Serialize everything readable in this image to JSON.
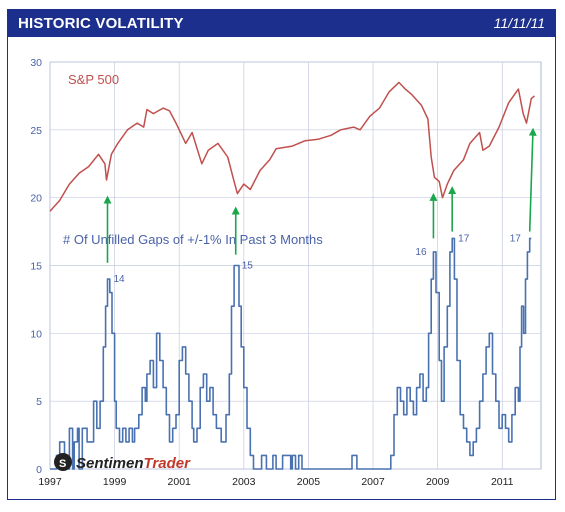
{
  "header": {
    "title": "HISTORIC VOLATILITY",
    "date": "11/11/11"
  },
  "logo": {
    "text_a": "Sentimen",
    "text_b": "Trader"
  },
  "chart_data": {
    "type": "line",
    "xlim": [
      1997,
      2012.2
    ],
    "ylim": [
      0,
      30
    ],
    "yticks": [
      0,
      5,
      10,
      15,
      20,
      25,
      30
    ],
    "xticks": [
      "1997",
      "1999",
      "2001",
      "2003",
      "2005",
      "2007",
      "2009",
      "2011"
    ],
    "xtick_values": [
      1997,
      1999,
      2001,
      2003,
      2005,
      2007,
      2009,
      2011
    ],
    "grid": true,
    "series": [
      {
        "name": "S&P 500",
        "color": "#c0504d",
        "points": [
          [
            1997.0,
            19.0
          ],
          [
            1997.3,
            19.8
          ],
          [
            1997.6,
            21.0
          ],
          [
            1997.9,
            21.8
          ],
          [
            1998.2,
            22.3
          ],
          [
            1998.5,
            23.2
          ],
          [
            1998.7,
            22.5
          ],
          [
            1998.75,
            21.3
          ],
          [
            1998.9,
            23.2
          ],
          [
            1999.1,
            24.0
          ],
          [
            1999.4,
            25.0
          ],
          [
            1999.7,
            25.5
          ],
          [
            1999.9,
            25.2
          ],
          [
            2000.0,
            26.5
          ],
          [
            2000.2,
            26.2
          ],
          [
            2000.5,
            26.6
          ],
          [
            2000.7,
            26.4
          ],
          [
            2000.9,
            25.5
          ],
          [
            2001.2,
            24.0
          ],
          [
            2001.4,
            24.8
          ],
          [
            2001.7,
            22.5
          ],
          [
            2001.9,
            23.5
          ],
          [
            2002.2,
            24.0
          ],
          [
            2002.5,
            23.0
          ],
          [
            2002.7,
            21.2
          ],
          [
            2002.8,
            20.3
          ],
          [
            2003.0,
            21.0
          ],
          [
            2003.2,
            20.6
          ],
          [
            2003.5,
            22.0
          ],
          [
            2003.8,
            22.8
          ],
          [
            2004.0,
            23.6
          ],
          [
            2004.5,
            23.8
          ],
          [
            2004.9,
            24.2
          ],
          [
            2005.3,
            24.3
          ],
          [
            2005.7,
            24.6
          ],
          [
            2006.0,
            25.0
          ],
          [
            2006.4,
            25.2
          ],
          [
            2006.6,
            25.0
          ],
          [
            2006.9,
            26.0
          ],
          [
            2007.2,
            26.6
          ],
          [
            2007.5,
            27.8
          ],
          [
            2007.8,
            28.5
          ],
          [
            2008.0,
            28.0
          ],
          [
            2008.2,
            27.6
          ],
          [
            2008.5,
            26.8
          ],
          [
            2008.7,
            25.8
          ],
          [
            2008.8,
            23.0
          ],
          [
            2008.9,
            21.5
          ],
          [
            2009.05,
            21.2
          ],
          [
            2009.15,
            20.0
          ],
          [
            2009.3,
            21.0
          ],
          [
            2009.5,
            22.0
          ],
          [
            2009.8,
            22.8
          ],
          [
            2010.0,
            24.0
          ],
          [
            2010.3,
            24.8
          ],
          [
            2010.4,
            23.5
          ],
          [
            2010.6,
            23.8
          ],
          [
            2010.9,
            25.2
          ],
          [
            2011.2,
            27.0
          ],
          [
            2011.5,
            28.0
          ],
          [
            2011.65,
            26.2
          ],
          [
            2011.75,
            25.5
          ],
          [
            2011.9,
            27.3
          ],
          [
            2012.0,
            27.5
          ]
        ]
      },
      {
        "name": "# Of Unfilled Gaps of +/-1% In Past 3 Months",
        "color": "#4a72b0",
        "points": [
          [
            1997.0,
            0
          ],
          [
            1997.2,
            1
          ],
          [
            1997.3,
            2
          ],
          [
            1997.45,
            0
          ],
          [
            1997.6,
            3
          ],
          [
            1997.7,
            0
          ],
          [
            1997.75,
            2
          ],
          [
            1997.85,
            3
          ],
          [
            1997.9,
            0
          ],
          [
            1998.0,
            3
          ],
          [
            1998.15,
            2
          ],
          [
            1998.25,
            2
          ],
          [
            1998.35,
            5
          ],
          [
            1998.45,
            3
          ],
          [
            1998.55,
            5
          ],
          [
            1998.65,
            9
          ],
          [
            1998.72,
            12
          ],
          [
            1998.78,
            14
          ],
          [
            1998.85,
            13
          ],
          [
            1998.92,
            10
          ],
          [
            1999.0,
            5
          ],
          [
            1999.05,
            3
          ],
          [
            1999.15,
            2
          ],
          [
            1999.25,
            3
          ],
          [
            1999.35,
            2
          ],
          [
            1999.45,
            3
          ],
          [
            1999.55,
            2
          ],
          [
            1999.62,
            3
          ],
          [
            1999.75,
            4
          ],
          [
            1999.85,
            6
          ],
          [
            1999.95,
            5
          ],
          [
            2000.0,
            7
          ],
          [
            2000.1,
            8
          ],
          [
            2000.2,
            6
          ],
          [
            2000.3,
            10
          ],
          [
            2000.4,
            8
          ],
          [
            2000.5,
            6
          ],
          [
            2000.6,
            4
          ],
          [
            2000.7,
            2
          ],
          [
            2000.8,
            3
          ],
          [
            2000.9,
            4
          ],
          [
            2001.0,
            8
          ],
          [
            2001.1,
            9
          ],
          [
            2001.2,
            7
          ],
          [
            2001.3,
            5
          ],
          [
            2001.4,
            3
          ],
          [
            2001.45,
            2
          ],
          [
            2001.55,
            3
          ],
          [
            2001.65,
            6
          ],
          [
            2001.75,
            7
          ],
          [
            2001.85,
            5
          ],
          [
            2001.95,
            6
          ],
          [
            2002.05,
            4
          ],
          [
            2002.15,
            3
          ],
          [
            2002.3,
            2
          ],
          [
            2002.45,
            4
          ],
          [
            2002.55,
            7
          ],
          [
            2002.62,
            12
          ],
          [
            2002.7,
            15
          ],
          [
            2002.78,
            15
          ],
          [
            2002.85,
            12
          ],
          [
            2002.92,
            9
          ],
          [
            2003.0,
            6
          ],
          [
            2003.1,
            3
          ],
          [
            2003.2,
            1
          ],
          [
            2003.3,
            0
          ],
          [
            2003.5,
            0
          ],
          [
            2003.55,
            1
          ],
          [
            2003.7,
            0
          ],
          [
            2003.9,
            1
          ],
          [
            2004.0,
            0
          ],
          [
            2004.2,
            1
          ],
          [
            2004.45,
            0
          ],
          [
            2004.5,
            1
          ],
          [
            2004.6,
            0
          ],
          [
            2004.7,
            1
          ],
          [
            2004.8,
            0
          ],
          [
            2006.3,
            0
          ],
          [
            2006.35,
            1
          ],
          [
            2006.5,
            0
          ],
          [
            2007.4,
            0
          ],
          [
            2007.55,
            1
          ],
          [
            2007.65,
            4
          ],
          [
            2007.75,
            6
          ],
          [
            2007.85,
            5
          ],
          [
            2007.95,
            4
          ],
          [
            2008.05,
            6
          ],
          [
            2008.15,
            5
          ],
          [
            2008.25,
            4
          ],
          [
            2008.35,
            6
          ],
          [
            2008.45,
            7
          ],
          [
            2008.55,
            5
          ],
          [
            2008.65,
            6
          ],
          [
            2008.72,
            10
          ],
          [
            2008.8,
            14
          ],
          [
            2008.87,
            16
          ],
          [
            2008.95,
            13
          ],
          [
            2009.05,
            8
          ],
          [
            2009.12,
            5
          ],
          [
            2009.2,
            9
          ],
          [
            2009.3,
            12
          ],
          [
            2009.38,
            16
          ],
          [
            2009.45,
            17
          ],
          [
            2009.52,
            14
          ],
          [
            2009.6,
            8
          ],
          [
            2009.7,
            4
          ],
          [
            2009.8,
            3
          ],
          [
            2009.9,
            2
          ],
          [
            2010.0,
            1
          ],
          [
            2010.1,
            2
          ],
          [
            2010.2,
            3
          ],
          [
            2010.3,
            5
          ],
          [
            2010.4,
            7
          ],
          [
            2010.5,
            9
          ],
          [
            2010.6,
            10
          ],
          [
            2010.7,
            7
          ],
          [
            2010.8,
            5
          ],
          [
            2010.9,
            3
          ],
          [
            2011.0,
            4
          ],
          [
            2011.1,
            3
          ],
          [
            2011.2,
            2
          ],
          [
            2011.3,
            4
          ],
          [
            2011.4,
            6
          ],
          [
            2011.5,
            5
          ],
          [
            2011.55,
            9
          ],
          [
            2011.6,
            12
          ],
          [
            2011.66,
            10
          ],
          [
            2011.72,
            14
          ],
          [
            2011.78,
            16
          ],
          [
            2011.85,
            17
          ],
          [
            2011.9,
            17
          ]
        ]
      }
    ],
    "annotations": {
      "sp_label": "S&P 500",
      "gap_label": "# Of Unfilled Gaps of +/-1% In Past 3 Months",
      "peak_labels": [
        {
          "x": 1998.78,
          "y": 14,
          "text": "14"
        },
        {
          "x": 2002.75,
          "y": 15,
          "text": "15"
        },
        {
          "x": 2008.87,
          "y": 16,
          "text": "16"
        },
        {
          "x": 2009.45,
          "y": 17,
          "text": "17"
        },
        {
          "x": 2011.85,
          "y": 17,
          "text": "17"
        }
      ],
      "arrows": [
        {
          "x1": 1998.78,
          "y1": 15.2,
          "x2": 1998.78,
          "y2": 20.3
        },
        {
          "x1": 2002.75,
          "y1": 15.8,
          "x2": 2002.75,
          "y2": 19.5
        },
        {
          "x1": 2008.87,
          "y1": 17.0,
          "x2": 2008.87,
          "y2": 20.5
        },
        {
          "x1": 2009.45,
          "y1": 17.5,
          "x2": 2009.45,
          "y2": 21.0
        },
        {
          "x1": 2011.85,
          "y1": 17.5,
          "x2": 2011.95,
          "y2": 25.3
        }
      ]
    }
  }
}
